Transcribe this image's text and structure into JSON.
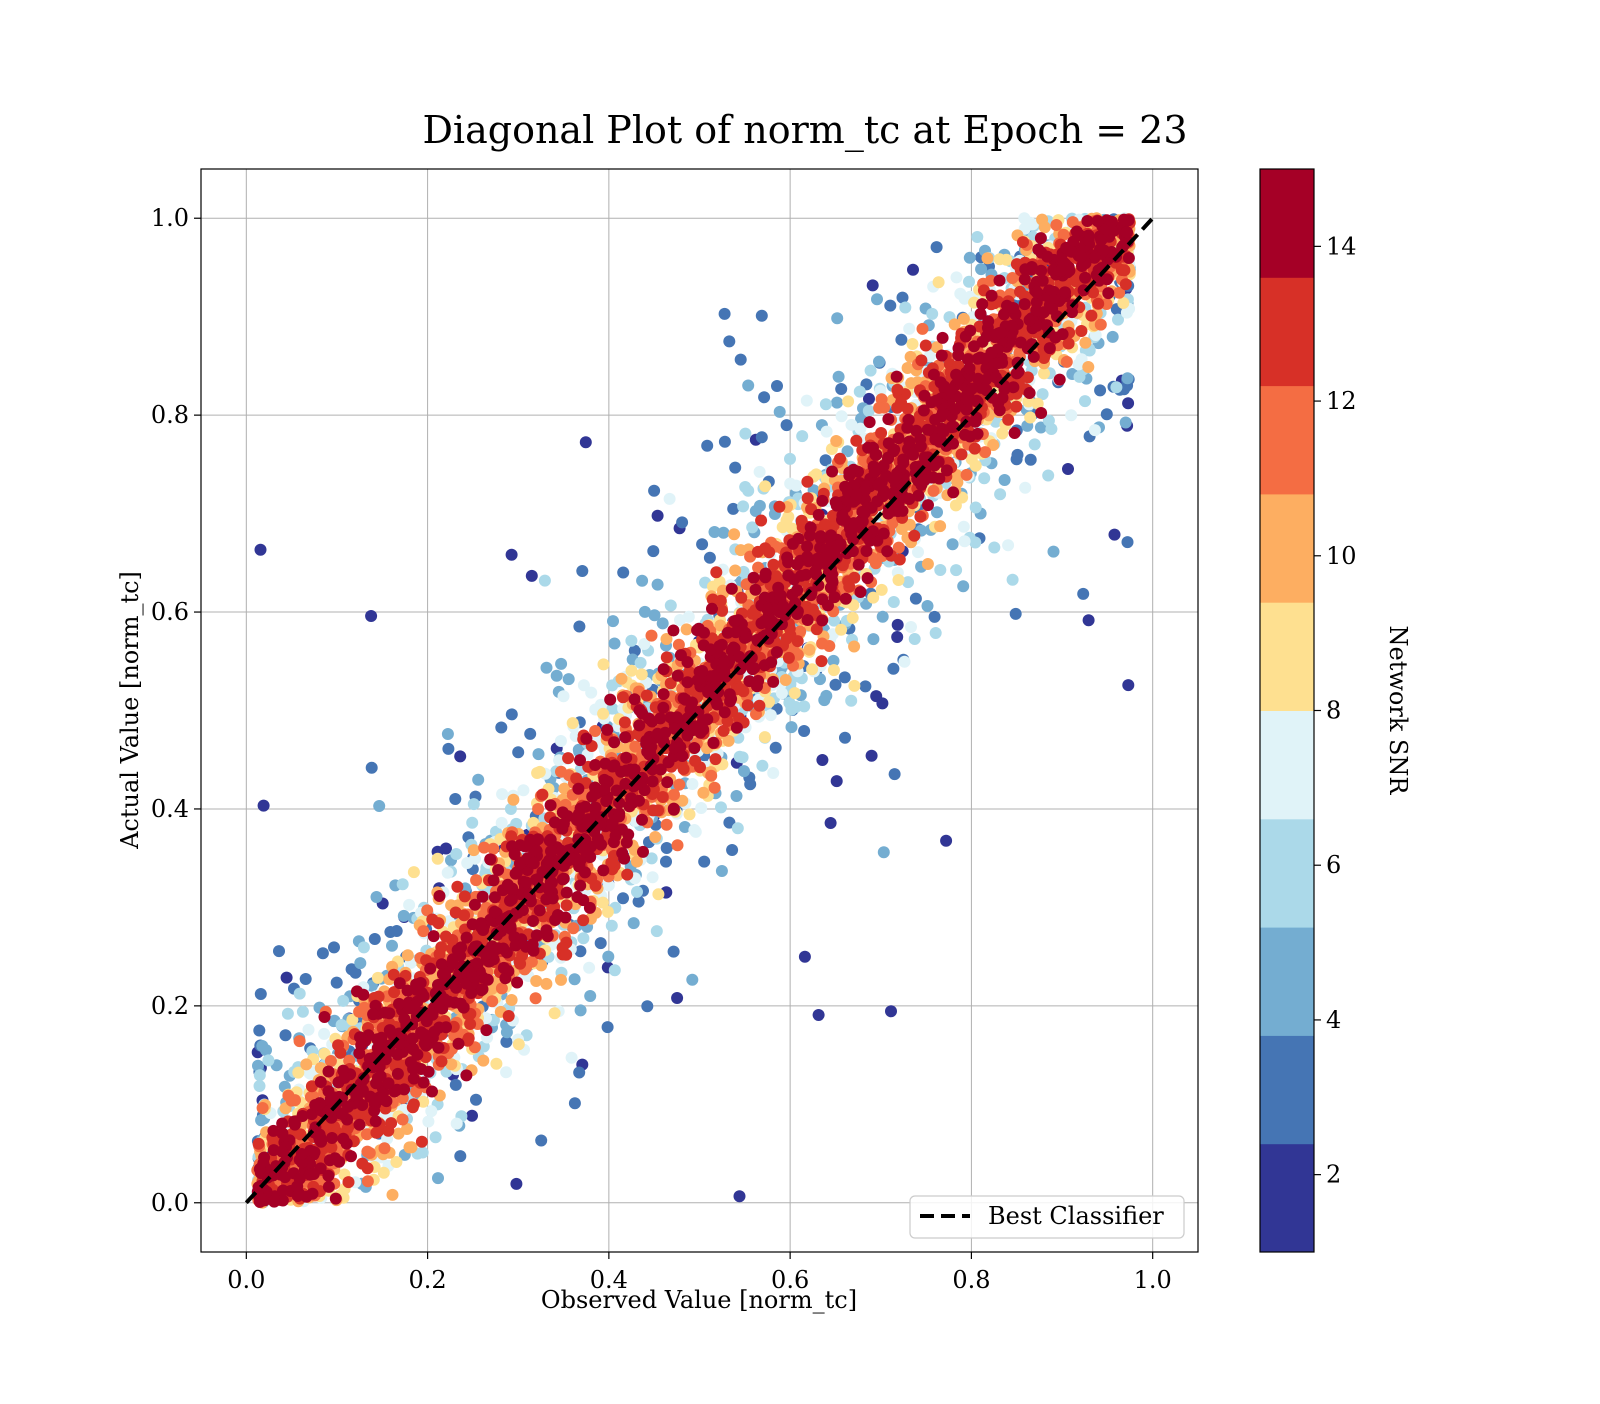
{
  "chart_data": {
    "type": "scatter",
    "title": "Diagonal Plot of norm_tc at Epoch = 23",
    "xlabel": "Observed Value [norm_tc]",
    "ylabel": "Actual Value [norm_tc]",
    "xlim": [
      -0.05,
      1.05
    ],
    "ylim": [
      -0.05,
      1.05
    ],
    "x_ticks": [
      0.0,
      0.2,
      0.4,
      0.6,
      0.8,
      1.0
    ],
    "y_ticks": [
      0.0,
      0.2,
      0.4,
      0.6,
      0.8,
      1.0
    ],
    "x_tick_labels": [
      "0.0",
      "0.2",
      "0.4",
      "0.6",
      "0.8",
      "1.0"
    ],
    "y_tick_labels": [
      "0.0",
      "0.2",
      "0.4",
      "0.6",
      "0.8",
      "1.0"
    ],
    "grid": true,
    "reference_line": {
      "name": "Best Classifier",
      "x": [
        0.0,
        1.0
      ],
      "y": [
        0.0,
        1.0
      ],
      "style": "dashed",
      "color": "#000000"
    },
    "legend": {
      "position": "lower-right",
      "entries": [
        "Best Classifier"
      ]
    },
    "colorbar": {
      "label": "Network SNR",
      "range": [
        1,
        15
      ],
      "tick_values": [
        2,
        4,
        6,
        8,
        10,
        12,
        14
      ],
      "tick_labels": [
        "2",
        "4",
        "6",
        "8",
        "10",
        "12",
        "14"
      ],
      "bins": [
        {
          "min": 1.0,
          "max": 2.4,
          "color": "#313695"
        },
        {
          "min": 2.4,
          "max": 3.8,
          "color": "#4575b4"
        },
        {
          "min": 3.8,
          "max": 5.2,
          "color": "#74add1"
        },
        {
          "min": 5.2,
          "max": 6.6,
          "color": "#abd9e9"
        },
        {
          "min": 6.6,
          "max": 8.0,
          "color": "#e0f3f8"
        },
        {
          "min": 8.0,
          "max": 9.4,
          "color": "#fee090"
        },
        {
          "min": 9.4,
          "max": 10.8,
          "color": "#fdae61"
        },
        {
          "min": 10.8,
          "max": 12.2,
          "color": "#f46d43"
        },
        {
          "min": 12.2,
          "max": 13.6,
          "color": "#d73027"
        },
        {
          "min": 13.6,
          "max": 15.0,
          "color": "#a50026"
        }
      ]
    },
    "point_cloud_summary": {
      "x_range": [
        0.01,
        0.98
      ],
      "y_range": [
        0.0,
        1.0
      ],
      "high_snr_band_halfwidth": 0.08,
      "low_snr_spread_max": 0.55
    }
  }
}
